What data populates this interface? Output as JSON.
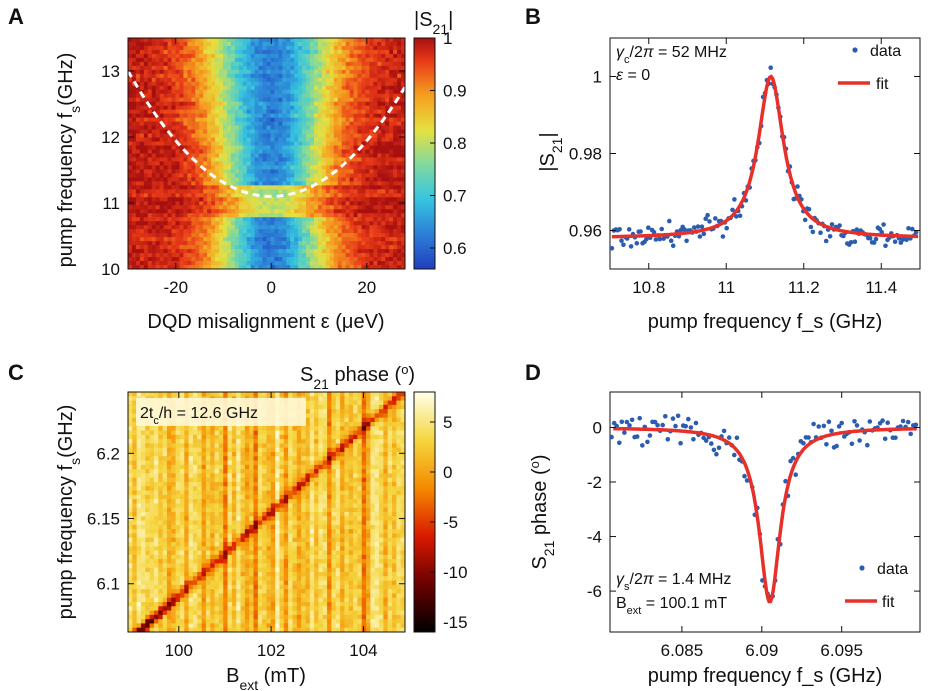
{
  "figure": {
    "panel_letters": [
      "A",
      "B",
      "C",
      "D"
    ]
  },
  "chart_data": [
    {
      "id": "A",
      "type": "heatmap",
      "xlabel": "DQD misalignment ε (μeV)",
      "ylabel": "pump frequency f_s(GHz)",
      "xticks": [
        "-20",
        "0",
        "20"
      ],
      "xtick_values": [
        -20,
        0,
        20
      ],
      "yticks": [
        "10",
        "11",
        "12",
        "13"
      ],
      "ytick_values": [
        10,
        11,
        12,
        13
      ],
      "xlim": [
        -30,
        28
      ],
      "ylim": [
        10,
        13.5
      ],
      "colorbar": {
        "label": "|S21|",
        "ticks": [
          "1",
          "0.9",
          "0.8",
          "0.7",
          "0.6"
        ],
        "tick_values": [
          1,
          0.9,
          0.8,
          0.7,
          0.6
        ],
        "range": [
          0.56,
          1
        ],
        "colormap": "jet"
      },
      "dashed_curve": {
        "minimum_at": [
          0,
          11.1
        ],
        "at_left_edge": [
          -30,
          13.0
        ],
        "at_right_edge": [
          28,
          13.0
        ],
        "color": "#ffffff"
      }
    },
    {
      "id": "B",
      "type": "scatter",
      "xlabel": "pump frequency f_s (GHz)",
      "ylabel": "|S21|",
      "xticks": [
        "10.8",
        "11",
        "11.2",
        "11.4"
      ],
      "xtick_values": [
        10.8,
        11.0,
        11.2,
        11.4
      ],
      "yticks": [
        "0.96",
        "0.98",
        "1"
      ],
      "ytick_values": [
        0.96,
        0.98,
        1.0
      ],
      "xlim": [
        10.7,
        11.5
      ],
      "ylim": [
        0.95,
        1.01
      ],
      "annotations": [
        "γc/2π = 52 MHz",
        "ε = 0"
      ],
      "legend": [
        "data",
        "fit"
      ],
      "fit": {
        "center": 11.115,
        "baseline": 0.958,
        "peak": 1.0,
        "hwhm": 0.04
      },
      "data_color": "#2a5db0",
      "fit_color": "#e8302a"
    },
    {
      "id": "C",
      "type": "heatmap",
      "xlabel": "B_ext (mT)",
      "ylabel": "pump frequency f_s(GHz)",
      "xticks": [
        "100",
        "102",
        "104"
      ],
      "xtick_values": [
        100,
        102,
        104
      ],
      "yticks": [
        "6.1",
        "6.15",
        "6.2"
      ],
      "ytick_values": [
        6.1,
        6.15,
        6.2
      ],
      "xlim": [
        98.9,
        104.9
      ],
      "ylim": [
        6.063,
        6.247
      ],
      "annotation": "2tc/h = 12.6 GHz",
      "colorbar": {
        "label": "S21 phase (°)",
        "ticks": [
          "5",
          "0",
          "-5",
          "-10",
          "-15"
        ],
        "tick_values": [
          5,
          0,
          -5,
          -10,
          -15
        ],
        "range": [
          -16,
          8
        ],
        "colormap": "hot"
      },
      "diagonal_feature": {
        "from": [
          99.2,
          6.065
        ],
        "to": [
          104.8,
          6.245
        ]
      }
    },
    {
      "id": "D",
      "type": "scatter",
      "xlabel": "pump frequency f_s (GHz)",
      "ylabel": "S21 phase (°)",
      "xticks": [
        "6.085",
        "6.09",
        "6.095"
      ],
      "xtick_values": [
        6.085,
        6.09,
        6.095
      ],
      "yticks": [
        "0",
        "-2",
        "-4",
        "-6"
      ],
      "ytick_values": [
        0,
        -2,
        -4,
        -6
      ],
      "xlim": [
        6.0805,
        6.0999
      ],
      "ylim": [
        -7.5,
        1.3
      ],
      "annotations": [
        "γs/2π = 1.4 MHz",
        "Bext = 100.1 mT"
      ],
      "legend": [
        "data",
        "fit"
      ],
      "fit": {
        "center": 6.0905,
        "baseline": 0,
        "depth": -6.4,
        "hwhm": 0.0008
      },
      "data_color": "#2a5db0",
      "fit_color": "#e8302a"
    }
  ]
}
